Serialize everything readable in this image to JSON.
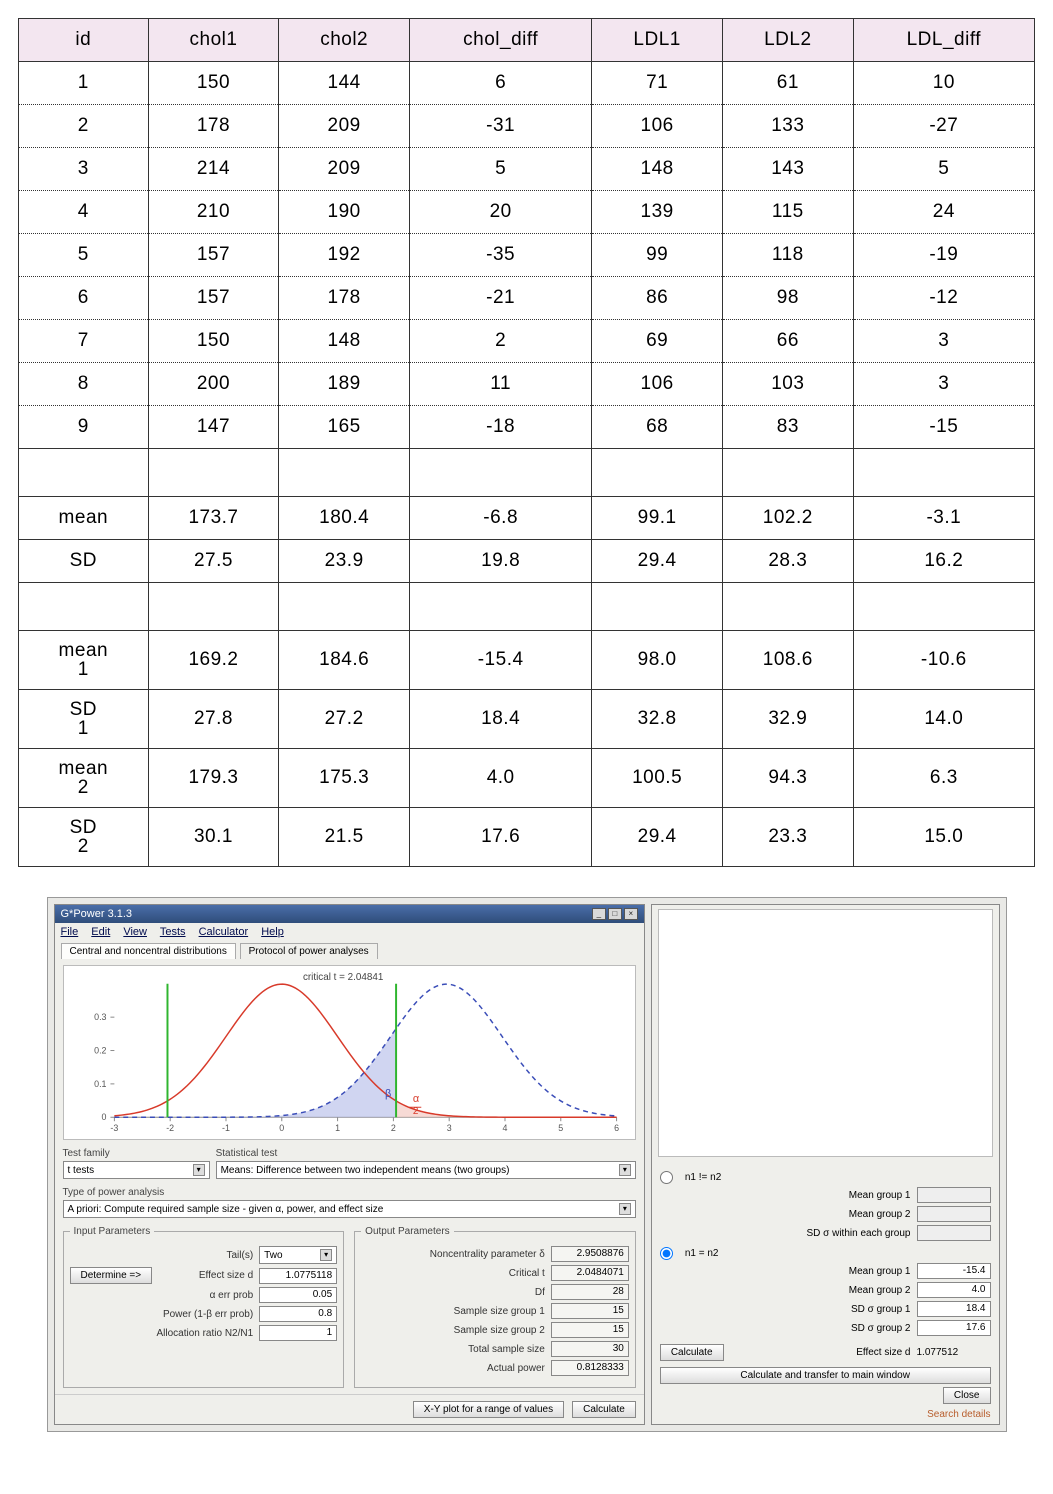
{
  "table": {
    "header_bg": "#f3e6f0",
    "border_color": "#333333",
    "columns": [
      "id",
      "chol1",
      "chol2",
      "chol_diff",
      "LDL1",
      "LDL2",
      "LDL_diff"
    ],
    "rows": [
      [
        "1",
        "150",
        "144",
        "6",
        "71",
        "61",
        "10"
      ],
      [
        "2",
        "178",
        "209",
        "-31",
        "106",
        "133",
        "-27"
      ],
      [
        "3",
        "214",
        "209",
        "5",
        "148",
        "143",
        "5"
      ],
      [
        "4",
        "210",
        "190",
        "20",
        "139",
        "115",
        "24"
      ],
      [
        "5",
        "157",
        "192",
        "-35",
        "99",
        "118",
        "-19"
      ],
      [
        "6",
        "157",
        "178",
        "-21",
        "86",
        "98",
        "-12"
      ],
      [
        "7",
        "150",
        "148",
        "2",
        "69",
        "66",
        "3"
      ],
      [
        "8",
        "200",
        "189",
        "11",
        "106",
        "103",
        "3"
      ],
      [
        "9",
        "147",
        "165",
        "-18",
        "68",
        "83",
        "-15"
      ]
    ],
    "summary1": [
      [
        "mean",
        "173.7",
        "180.4",
        "-6.8",
        "99.1",
        "102.2",
        "-3.1"
      ],
      [
        "SD",
        "27.5",
        "23.9",
        "19.8",
        "29.4",
        "28.3",
        "16.2"
      ]
    ],
    "summary2": [
      [
        "mean1",
        "169.2",
        "184.6",
        "-15.4",
        "98.0",
        "108.6",
        "-10.6"
      ],
      [
        "SD1",
        "27.8",
        "27.2",
        "18.4",
        "32.8",
        "32.9",
        "14.0"
      ],
      [
        "mean2",
        "179.3",
        "175.3",
        "4.0",
        "100.5",
        "94.3",
        "6.3"
      ],
      [
        "SD2",
        "30.1",
        "21.5",
        "17.6",
        "29.4",
        "23.3",
        "15.0"
      ]
    ]
  },
  "gpower": {
    "title": "G*Power 3.1.3",
    "menu": [
      "File",
      "Edit",
      "View",
      "Tests",
      "Calculator",
      "Help"
    ],
    "tabs": [
      "Central and noncentral distributions",
      "Protocol of power analyses"
    ],
    "active_tab": 0,
    "plot": {
      "critical_t_label": "critical t = 2.04841",
      "xlim": [
        -3,
        6
      ],
      "ylim": [
        0,
        0.4
      ],
      "xticks": [
        -3,
        -2,
        -1,
        0,
        1,
        2,
        3,
        4,
        5,
        6
      ],
      "yticks": [
        0,
        0.1,
        0.2,
        0.3
      ],
      "yticks_labels": [
        "0",
        "0.1",
        "0.2",
        "0.3"
      ],
      "central_color": "#d83a2a",
      "noncentral_color": "#3a4db8",
      "noncentral_dash": "5,4",
      "crit_line_color": "#2fb52f",
      "beta_fill": "#b0b9e8",
      "beta_fill_opacity": 0.6,
      "alpha_fill": "#f2c1b9",
      "alpha_fill_opacity": 0.6,
      "shift": 2.95,
      "beta_label": "β",
      "alpha_label": "α\n2",
      "background": "#ffffff",
      "line_width": 1.5
    },
    "test_family_label": "Test family",
    "test_family": "t tests",
    "stat_test_label": "Statistical test",
    "stat_test": "Means: Difference between two independent means (two groups)",
    "power_type_label": "Type of power analysis",
    "power_type": "A priori: Compute required sample size - given α, power, and effect size",
    "input": {
      "legend": "Input Parameters",
      "determine_btn": "Determine =>",
      "tails_label": "Tail(s)",
      "tails": "Two",
      "effect_label": "Effect size d",
      "effect": "1.0775118",
      "alpha_label": "α err prob",
      "alpha": "0.05",
      "power_label": "Power (1-β err prob)",
      "power": "0.8",
      "alloc_label": "Allocation ratio N2/N1",
      "alloc": "1"
    },
    "output": {
      "legend": "Output Parameters",
      "noncent_label": "Noncentrality parameter δ",
      "noncent": "2.9508876",
      "critt_label": "Critical t",
      "critt": "2.0484071",
      "df_label": "Df",
      "df": "28",
      "n1_label": "Sample size group 1",
      "n1": "15",
      "n2_label": "Sample size group 2",
      "n2": "15",
      "ntot_label": "Total sample size",
      "ntot": "30",
      "actual_label": "Actual power",
      "actual": "0.8128333"
    },
    "footer": {
      "xyplot": "X-Y plot for a range of values",
      "calc": "Calculate"
    },
    "side": {
      "opt1_label": "n1 != n2",
      "opt2_label": "n1 = n2",
      "mean1_label": "Mean group 1",
      "mean2_label": "Mean group 2",
      "sdwithin_label": "SD σ within each group",
      "sd1_label": "SD σ group 1",
      "sd2_label": "SD σ group 2",
      "mean1": "-15.4",
      "mean2": "4.0",
      "sd1": "18.4",
      "sd2": "17.6",
      "calc_btn": "Calculate",
      "effect_label": "Effect size d",
      "effect": "1.077512",
      "transfer_btn": "Calculate and transfer to main window",
      "close_btn": "Close",
      "search_details": "Search details"
    }
  }
}
